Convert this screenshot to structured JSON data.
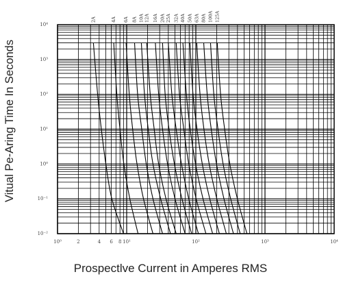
{
  "chart_data": {
    "type": "line",
    "title": "",
    "xlabel": "Prospectlve Current in Amperes RMS",
    "ylabel": "Vitual Pe-Aring Time In Seconds",
    "x_scale": "log",
    "y_scale": "log",
    "xlim": [
      1,
      10000
    ],
    "ylim": [
      0.01,
      10000
    ],
    "grid": true,
    "x_tick_labels": [
      {
        "value": 1,
        "label": "10⁰"
      },
      {
        "value": 2,
        "label": "2"
      },
      {
        "value": 4,
        "label": "4"
      },
      {
        "value": 6,
        "label": "6"
      },
      {
        "value": 8,
        "label": "8"
      },
      {
        "value": 10,
        "label": "10¹"
      },
      {
        "value": 100,
        "label": "10²"
      },
      {
        "value": 1000,
        "label": "10³"
      },
      {
        "value": 10000,
        "label": "10⁴"
      }
    ],
    "y_tick_labels": [
      {
        "value": 0.01,
        "label": "10⁻²"
      },
      {
        "value": 0.1,
        "label": "10⁻¹"
      },
      {
        "value": 1,
        "label": "10⁰"
      },
      {
        "value": 10,
        "label": "10¹"
      },
      {
        "value": 100,
        "label": "10²"
      },
      {
        "value": 1000,
        "label": "10³"
      },
      {
        "value": 10000,
        "label": "10⁴"
      }
    ],
    "series": [
      {
        "name": "2A",
        "points": [
          [
            3.3,
            3000
          ],
          [
            3.8,
            100
          ],
          [
            4.3,
            10
          ],
          [
            5.0,
            1
          ],
          [
            6.1,
            0.1
          ],
          [
            9.0,
            0.01
          ]
        ]
      },
      {
        "name": "4A",
        "points": [
          [
            6.5,
            3000
          ],
          [
            7.2,
            100
          ],
          [
            8.0,
            10
          ],
          [
            9.1,
            1
          ],
          [
            11.1,
            0.1
          ],
          [
            14.6,
            0.01
          ]
        ]
      },
      {
        "name": "6A",
        "points": [
          [
            9.8,
            3000
          ],
          [
            10.9,
            100
          ],
          [
            12.2,
            10
          ],
          [
            14.1,
            1
          ],
          [
            17.5,
            0.1
          ],
          [
            24,
            0.01
          ]
        ]
      },
      {
        "name": "8A",
        "points": [
          [
            13.0,
            3000
          ],
          [
            14.4,
            100
          ],
          [
            16.5,
            10
          ],
          [
            19.2,
            1
          ],
          [
            24,
            0.1
          ],
          [
            33,
            0.01
          ]
        ]
      },
      {
        "name": "10A",
        "points": [
          [
            16.3,
            3000
          ],
          [
            18.1,
            100
          ],
          [
            20.5,
            10
          ],
          [
            24,
            1
          ],
          [
            31,
            0.1
          ],
          [
            43,
            0.01
          ]
        ]
      },
      {
        "name": "12A",
        "points": [
          [
            19.5,
            3000
          ],
          [
            21.9,
            100
          ],
          [
            25,
            10
          ],
          [
            29,
            1
          ],
          [
            37,
            0.1
          ],
          [
            52,
            0.01
          ]
        ]
      },
      {
        "name": "16A",
        "points": [
          [
            26,
            3000
          ],
          [
            29,
            100
          ],
          [
            33,
            10
          ],
          [
            39,
            1
          ],
          [
            50,
            0.1
          ],
          [
            70,
            0.01
          ]
        ]
      },
      {
        "name": "20A",
        "points": [
          [
            33,
            3000
          ],
          [
            36,
            100
          ],
          [
            41,
            10
          ],
          [
            49,
            1
          ],
          [
            63,
            0.1
          ],
          [
            87,
            0.01
          ]
        ]
      },
      {
        "name": "25A",
        "points": [
          [
            40,
            3000
          ],
          [
            45,
            100
          ],
          [
            52,
            10
          ],
          [
            62,
            1
          ],
          [
            79,
            0.1
          ],
          [
            109,
            0.01
          ]
        ]
      },
      {
        "name": "32A",
        "points": [
          [
            52,
            3000
          ],
          [
            58,
            100
          ],
          [
            67,
            10
          ],
          [
            79,
            1
          ],
          [
            101,
            0.1
          ],
          [
            140,
            0.01
          ]
        ]
      },
      {
        "name": "40A",
        "points": [
          [
            65,
            3000
          ],
          [
            73,
            100
          ],
          [
            83,
            10
          ],
          [
            99,
            1
          ],
          [
            127,
            0.1
          ],
          [
            175,
            0.01
          ]
        ]
      },
      {
        "name": "50A",
        "points": [
          [
            82,
            3000
          ],
          [
            91,
            100
          ],
          [
            104,
            10
          ],
          [
            124,
            1
          ],
          [
            159,
            0.1
          ],
          [
            219,
            0.01
          ]
        ]
      },
      {
        "name": "63A",
        "points": [
          [
            103,
            3000
          ],
          [
            115,
            100
          ],
          [
            131,
            10
          ],
          [
            156,
            1
          ],
          [
            201,
            0.1
          ],
          [
            276,
            0.01
          ]
        ]
      },
      {
        "name": "80A",
        "points": [
          [
            130,
            3000
          ],
          [
            146,
            100
          ],
          [
            167,
            10
          ],
          [
            199,
            1
          ],
          [
            255,
            0.1
          ],
          [
            350,
            0.01
          ]
        ]
      },
      {
        "name": "100A",
        "points": [
          [
            163,
            3000
          ],
          [
            182,
            100
          ],
          [
            209,
            10
          ],
          [
            248,
            1
          ],
          [
            319,
            0.1
          ],
          [
            438,
            0.01
          ]
        ]
      },
      {
        "name": "125A",
        "points": [
          [
            204,
            3000
          ],
          [
            228,
            100
          ],
          [
            261,
            10
          ],
          [
            310,
            1
          ],
          [
            399,
            0.1
          ],
          [
            548,
            0.01
          ]
        ]
      }
    ]
  }
}
